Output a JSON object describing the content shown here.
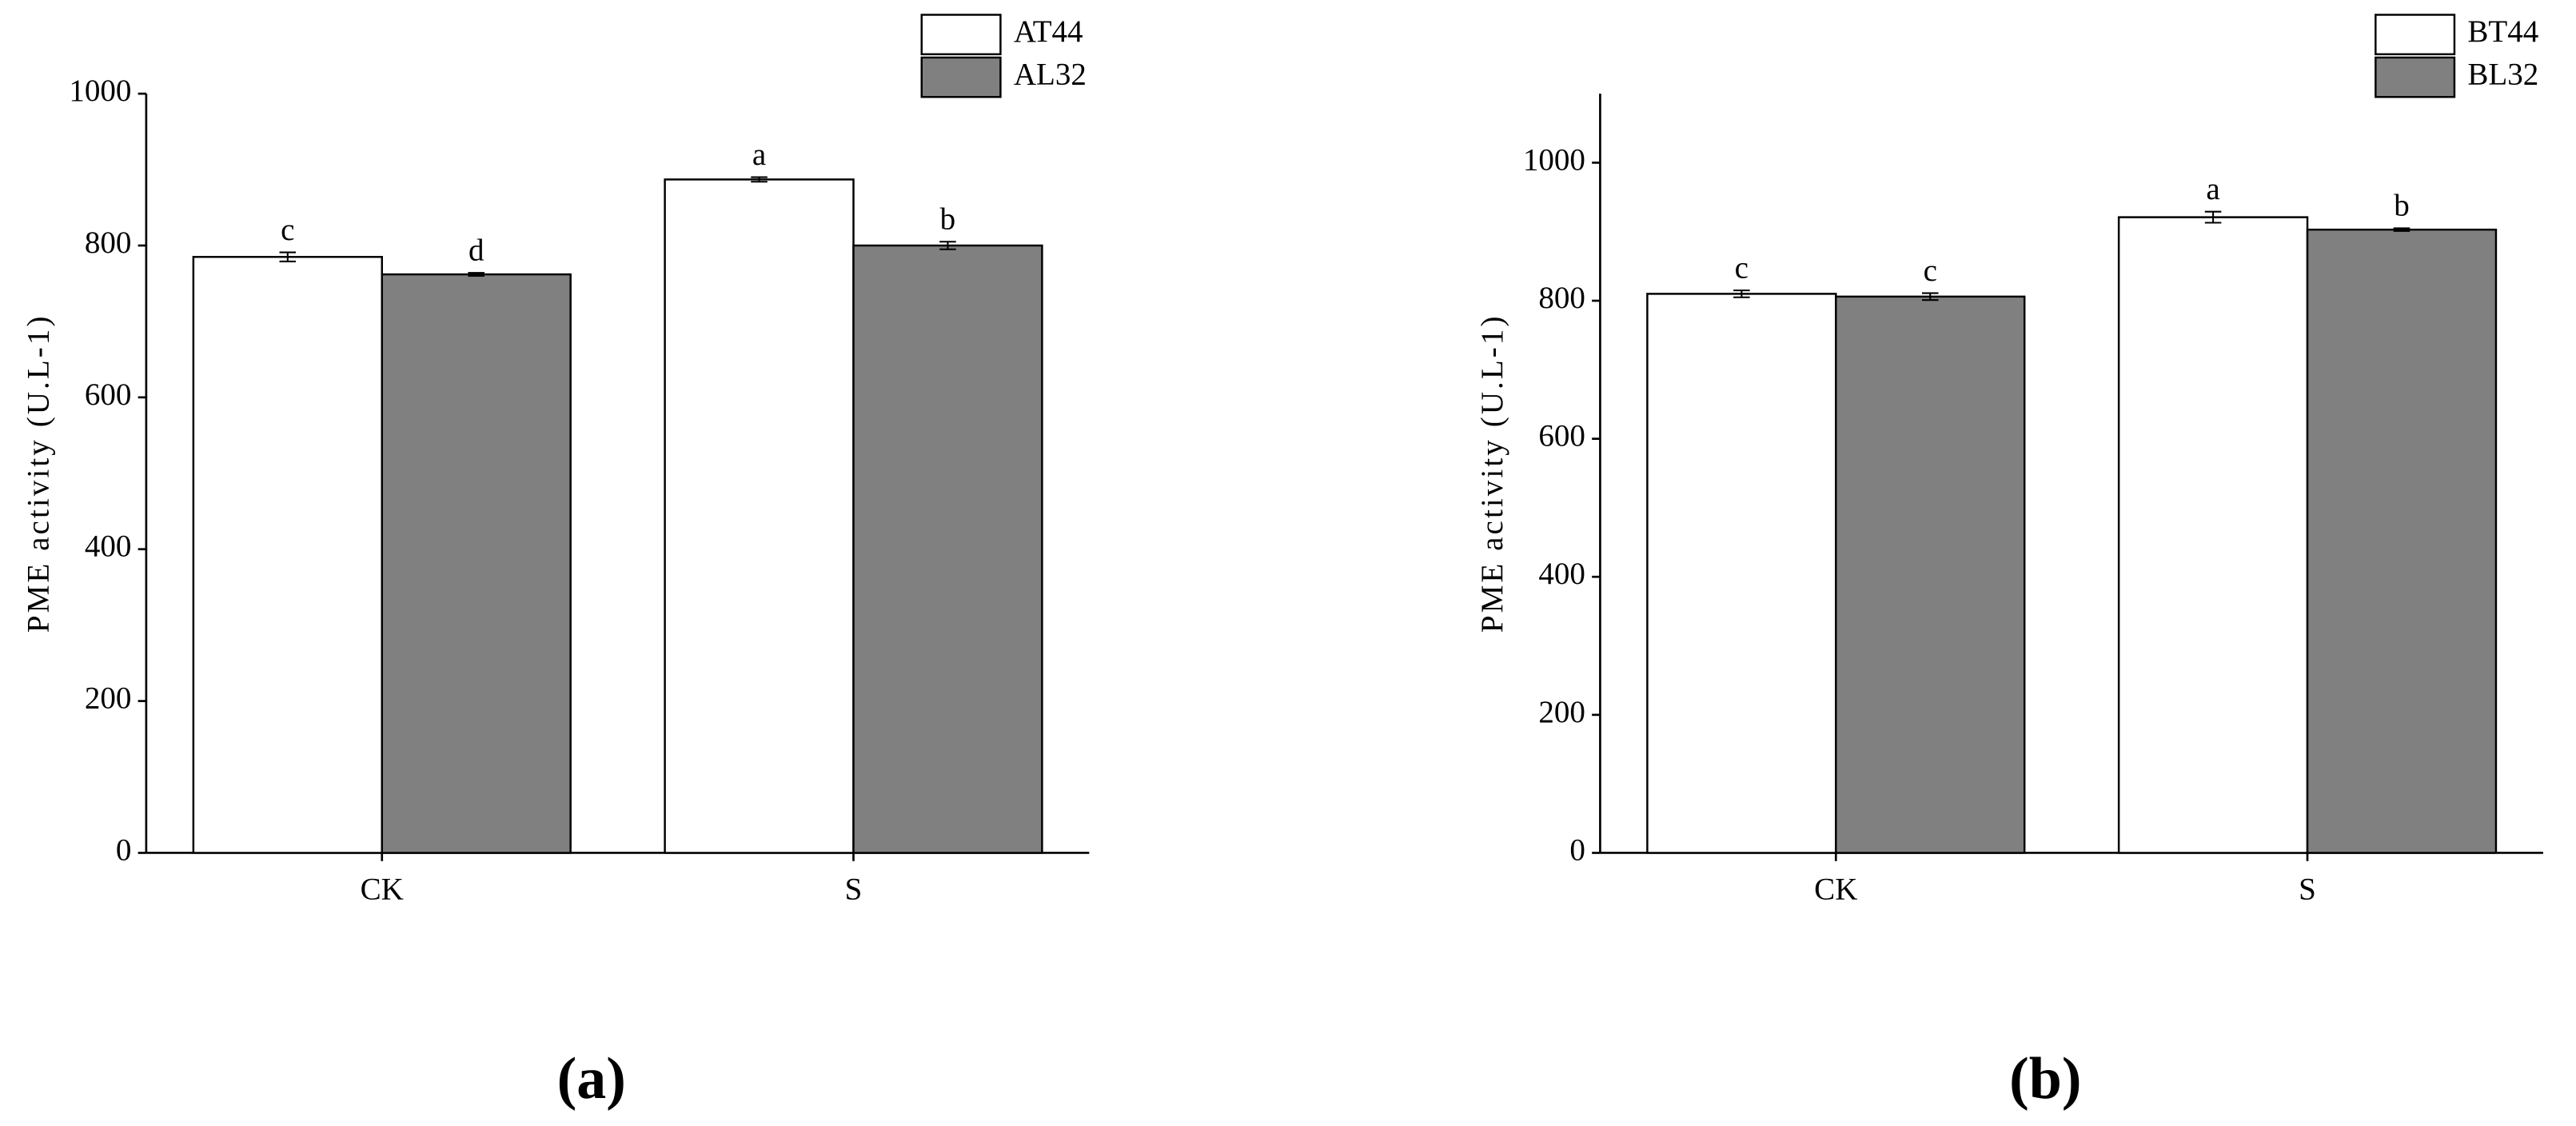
{
  "chart_data": [
    {
      "type": "bar",
      "panel_label": "(a)",
      "y_label": "PME activity (U.L-1)",
      "categories": [
        "CK",
        "S"
      ],
      "series": [
        {
          "name": "AT44",
          "color": "#ffffff",
          "values": [
            785,
            887
          ],
          "errors": [
            6,
            3
          ],
          "labels": [
            "c",
            "a"
          ]
        },
        {
          "name": "AL32",
          "color": "#808080",
          "values": [
            762,
            800
          ],
          "errors": [
            2,
            5
          ],
          "labels": [
            "d",
            "b"
          ]
        }
      ],
      "ylim": [
        0,
        1000
      ],
      "yticks": [
        0,
        200,
        400,
        600,
        800,
        1000
      ]
    },
    {
      "type": "bar",
      "panel_label": "(b)",
      "y_label": "PME activity (U.L-1)",
      "categories": [
        "CK",
        "S"
      ],
      "series": [
        {
          "name": "BT44",
          "color": "#ffffff",
          "values": [
            810,
            921
          ],
          "errors": [
            5,
            8
          ],
          "labels": [
            "c",
            "a"
          ]
        },
        {
          "name": "BL32",
          "color": "#808080",
          "values": [
            806,
            903
          ],
          "errors": [
            5,
            2
          ],
          "labels": [
            "c",
            "b"
          ]
        }
      ],
      "ylim": [
        0,
        1100
      ],
      "yticks": [
        0,
        200,
        400,
        600,
        800,
        1000
      ]
    }
  ]
}
